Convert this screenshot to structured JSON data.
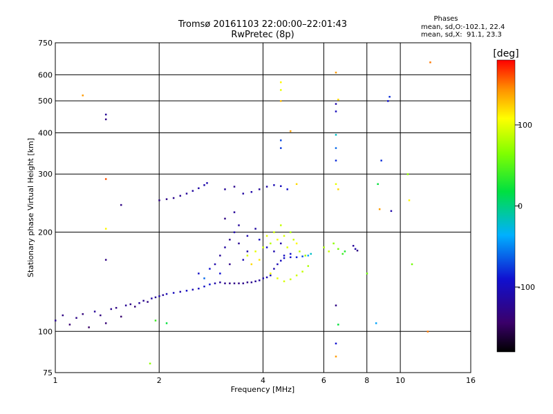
{
  "header": {
    "title_line1": "Tromsø 20161103 22:00:00–22:01:43",
    "title_line2": "RwPretec (8p)"
  },
  "info": {
    "title": "Phases",
    "line1": "mean, sd,O:-102.1, 22.4",
    "line2": "mean, sd,X:  91.1, 23.3"
  },
  "chart_data": {
    "type": "scatter",
    "xlabel": "Frequency [MHz]",
    "ylabel": "Stationary phase Virtual Height [km]",
    "x_scale": "log",
    "y_scale": "log",
    "xlim": [
      1,
      16
    ],
    "ylim": [
      75,
      750
    ],
    "x_ticks": [
      1,
      2,
      4,
      6,
      8,
      10,
      16
    ],
    "x_tick_labels": [
      "1",
      "2",
      "4",
      "6",
      "8",
      "10",
      "16"
    ],
    "y_ticks": [
      75,
      100,
      200,
      300,
      400,
      500,
      600,
      750
    ],
    "y_tick_labels": [
      "75",
      "100",
      "200",
      "300",
      "400",
      "500",
      "600",
      "750"
    ],
    "grid": true,
    "colorbar": {
      "label": "[deg]",
      "range": [
        -180,
        180
      ],
      "ticks": [
        100,
        0,
        -100
      ],
      "tick_labels": [
        "100",
        "0",
        "-100"
      ]
    },
    "series": [
      {
        "mode": "O",
        "trace": "low F region trace",
        "points": [
          [
            1.0,
            108,
            -125
          ],
          [
            1.05,
            112,
            -130
          ],
          [
            1.1,
            105,
            -140
          ],
          [
            1.15,
            110,
            -128
          ],
          [
            1.2,
            113,
            -135
          ],
          [
            1.25,
            103,
            -145
          ],
          [
            1.3,
            115,
            -120
          ],
          [
            1.35,
            112,
            -132
          ],
          [
            1.4,
            106,
            -138
          ],
          [
            1.45,
            117,
            -125
          ],
          [
            1.5,
            118,
            -130
          ],
          [
            1.55,
            111,
            -142
          ],
          [
            1.6,
            120,
            -122
          ],
          [
            1.65,
            121,
            -128
          ],
          [
            1.7,
            119,
            -136
          ],
          [
            1.75,
            122,
            -118
          ],
          [
            1.8,
            124,
            -124
          ],
          [
            1.85,
            123,
            -130
          ],
          [
            1.9,
            126,
            -115
          ],
          [
            1.95,
            127,
            -120
          ],
          [
            2.0,
            128,
            -110
          ],
          [
            2.05,
            129,
            -118
          ],
          [
            2.1,
            130,
            -105
          ],
          [
            2.2,
            131,
            -100
          ],
          [
            2.3,
            132,
            -110
          ],
          [
            2.4,
            133,
            -95
          ],
          [
            2.5,
            134,
            -105
          ],
          [
            2.6,
            135,
            -100
          ],
          [
            2.7,
            137,
            -95
          ],
          [
            2.8,
            139,
            -88
          ],
          [
            2.9,
            140,
            -110
          ],
          [
            3.0,
            141,
            -120
          ],
          [
            3.1,
            140,
            -125
          ],
          [
            3.2,
            140,
            -130
          ],
          [
            3.3,
            140,
            -128
          ],
          [
            3.4,
            140,
            -130
          ],
          [
            3.5,
            140,
            -126
          ],
          [
            3.6,
            141,
            -128
          ],
          [
            3.7,
            141,
            -124
          ],
          [
            3.8,
            142,
            -120
          ],
          [
            3.9,
            143,
            -118
          ],
          [
            4.0,
            145,
            -110
          ],
          [
            4.1,
            146,
            -105
          ],
          [
            4.2,
            148,
            -100
          ],
          [
            4.3,
            155,
            -110
          ],
          [
            4.4,
            160,
            -105
          ],
          [
            4.5,
            164,
            -100
          ],
          [
            4.6,
            167,
            -95
          ],
          [
            4.8,
            168,
            -90
          ],
          [
            5.0,
            168,
            -85
          ],
          [
            5.2,
            169,
            -70
          ],
          [
            5.4,
            170,
            -40
          ],
          [
            5.5,
            172,
            -20
          ]
        ]
      },
      {
        "mode": "O",
        "trace": "spread F cluster",
        "points": [
          [
            2.6,
            150,
            -95
          ],
          [
            2.8,
            155,
            -90
          ],
          [
            2.9,
            160,
            -110
          ],
          [
            3.0,
            170,
            -120
          ],
          [
            3.1,
            180,
            -115
          ],
          [
            3.2,
            190,
            -125
          ],
          [
            3.3,
            200,
            -110
          ],
          [
            3.4,
            210,
            -118
          ],
          [
            3.1,
            220,
            -130
          ],
          [
            3.3,
            230,
            -120
          ],
          [
            3.5,
            165,
            -105
          ],
          [
            3.6,
            175,
            -112
          ],
          [
            3.0,
            150,
            -90
          ],
          [
            2.7,
            145,
            -60
          ],
          [
            3.2,
            160,
            -128
          ],
          [
            3.4,
            185,
            -122
          ],
          [
            3.6,
            195,
            -108
          ],
          [
            3.8,
            205,
            -115
          ],
          [
            3.9,
            190,
            -100
          ],
          [
            4.1,
            180,
            -95
          ],
          [
            4.3,
            175,
            -108
          ],
          [
            4.5,
            185,
            -112
          ],
          [
            4.6,
            170,
            -98
          ],
          [
            4.8,
            172,
            -92
          ]
        ]
      },
      {
        "mode": "O",
        "trace": "high branch 230-290 km",
        "points": [
          [
            2.0,
            250,
            -130
          ],
          [
            2.1,
            252,
            -128
          ],
          [
            2.2,
            254,
            -125
          ],
          [
            2.3,
            258,
            -122
          ],
          [
            2.4,
            262,
            -118
          ],
          [
            2.5,
            267,
            -115
          ],
          [
            2.6,
            272,
            -112
          ],
          [
            2.7,
            278,
            -110
          ],
          [
            2.75,
            282,
            -108
          ],
          [
            3.1,
            270,
            -120
          ],
          [
            3.3,
            275,
            -125
          ],
          [
            3.5,
            262,
            -115
          ],
          [
            3.7,
            265,
            -110
          ],
          [
            3.9,
            270,
            -118
          ],
          [
            4.1,
            275,
            -112
          ],
          [
            4.3,
            278,
            -105
          ],
          [
            4.5,
            276,
            -100
          ],
          [
            4.7,
            270,
            -95
          ]
        ]
      },
      {
        "mode": "X",
        "trace": "X mode yellow-orange cluster",
        "points": [
          [
            3.6,
            170,
            95
          ],
          [
            3.8,
            175,
            100
          ],
          [
            4.0,
            180,
            90
          ],
          [
            4.2,
            185,
            85
          ],
          [
            4.4,
            190,
            105
          ],
          [
            4.6,
            195,
            95
          ],
          [
            4.8,
            200,
            80
          ],
          [
            5.0,
            185,
            110
          ],
          [
            3.7,
            160,
            120
          ],
          [
            3.9,
            165,
            115
          ],
          [
            4.1,
            195,
            100
          ],
          [
            4.3,
            200,
            92
          ],
          [
            4.5,
            210,
            88
          ],
          [
            4.7,
            180,
            98
          ],
          [
            4.9,
            190,
            90
          ],
          [
            5.1,
            175,
            85
          ],
          [
            5.3,
            170,
            75
          ],
          [
            4.2,
            150,
            105
          ],
          [
            4.4,
            145,
            100
          ],
          [
            4.6,
            142,
            95
          ],
          [
            4.8,
            144,
            90
          ],
          [
            5.0,
            148,
            92
          ],
          [
            5.2,
            152,
            88
          ],
          [
            5.4,
            158,
            80
          ]
        ]
      },
      {
        "mode": "X",
        "trace": "X mode 6-8 MHz",
        "points": [
          [
            6.0,
            180,
            80
          ],
          [
            6.2,
            175,
            90
          ],
          [
            6.4,
            185,
            70
          ],
          [
            6.6,
            178,
            60
          ],
          [
            6.8,
            172,
            40
          ],
          [
            6.5,
            280,
            100
          ],
          [
            6.6,
            270,
            120
          ],
          [
            6.9,
            175,
            30
          ],
          [
            7.3,
            182,
            -120
          ],
          [
            7.4,
            178,
            -110
          ],
          [
            7.5,
            176,
            -130
          ]
        ]
      },
      {
        "mode": "mixed",
        "trace": "isolated points",
        "points": [
          [
            1.2,
            520,
            140
          ],
          [
            1.4,
            455,
            -120
          ],
          [
            1.4,
            440,
            -130
          ],
          [
            1.4,
            290,
            160
          ],
          [
            1.4,
            205,
            110
          ],
          [
            1.4,
            165,
            -130
          ],
          [
            1.55,
            242,
            -130
          ],
          [
            1.88,
            80,
            70
          ],
          [
            1.95,
            108,
            40
          ],
          [
            2.1,
            106,
            20
          ],
          [
            6.5,
            610,
            140
          ],
          [
            6.5,
            490,
            -110
          ],
          [
            6.5,
            465,
            -100
          ],
          [
            6.5,
            395,
            -20
          ],
          [
            6.5,
            360,
            -60
          ],
          [
            6.5,
            330,
            -80
          ],
          [
            6.5,
            120,
            -130
          ],
          [
            6.5,
            92,
            -90
          ],
          [
            6.5,
            84,
            140
          ],
          [
            6.6,
            505,
            120
          ],
          [
            6.6,
            105,
            20
          ],
          [
            4.5,
            570,
            110
          ],
          [
            4.5,
            540,
            100
          ],
          [
            4.5,
            500,
            130
          ],
          [
            4.5,
            380,
            -70
          ],
          [
            4.5,
            360,
            -75
          ],
          [
            4.8,
            405,
            140
          ],
          [
            5.0,
            280,
            120
          ],
          [
            8.6,
            280,
            20
          ],
          [
            8.7,
            235,
            140
          ],
          [
            8.8,
            330,
            -80
          ],
          [
            9.2,
            500,
            -90
          ],
          [
            9.3,
            515,
            -80
          ],
          [
            9.4,
            232,
            -110
          ],
          [
            8.5,
            106,
            -40
          ],
          [
            10.5,
            300,
            70
          ],
          [
            10.6,
            250,
            110
          ],
          [
            10.8,
            160,
            60
          ],
          [
            12.0,
            100,
            150
          ],
          [
            12.2,
            655,
            150
          ],
          [
            8.0,
            150,
            60
          ]
        ]
      }
    ]
  }
}
